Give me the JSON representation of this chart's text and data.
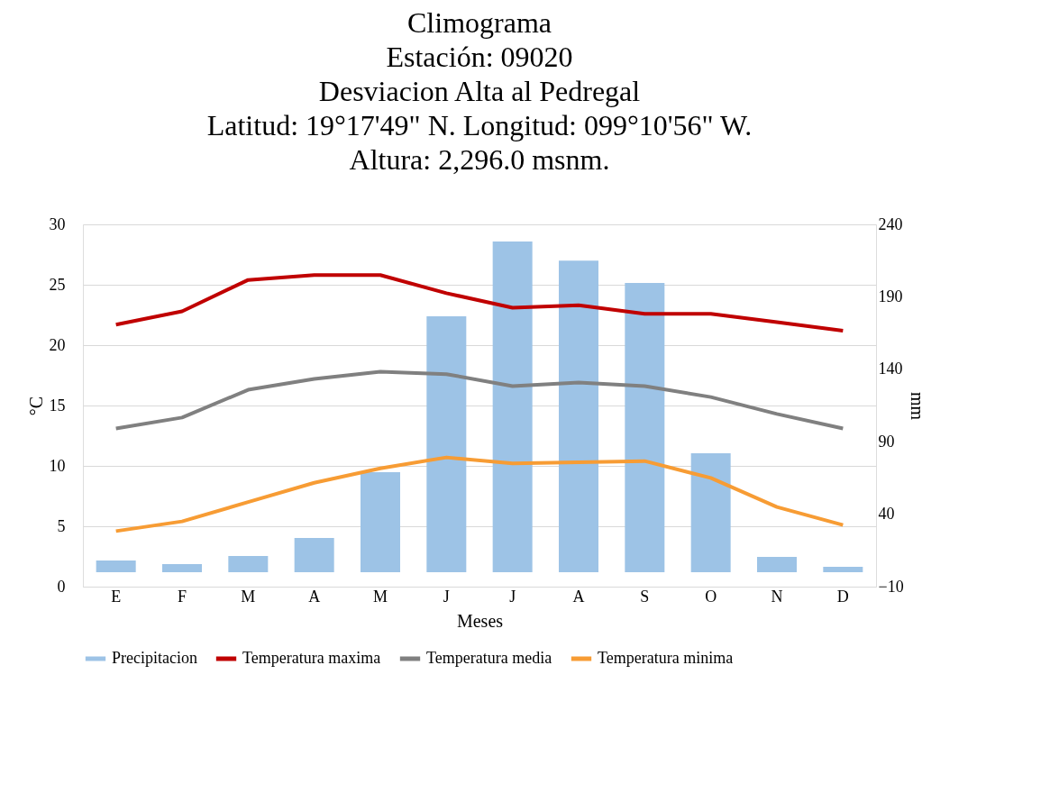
{
  "chart_data": {
    "type": "bar",
    "title": "Climograma",
    "subtitle": [
      "Estación: 09020",
      "Desviacion Alta al Pedregal",
      "Latitud: 19°17'49\" N.    Longitud: 099°10'56\" W.",
      "Altura: 2,296.0 msnm."
    ],
    "xlabel": "Meses",
    "ylabel": "°C",
    "y2label": "mm",
    "categories": [
      "E",
      "F",
      "M",
      "A",
      "M",
      "J",
      "J",
      "A",
      "S",
      "O",
      "N",
      "D"
    ],
    "series": [
      {
        "name": "Precipitacion",
        "axis": "y2",
        "color": "#9dc3e6",
        "values": [
          8.0,
          5.5,
          11.1,
          23.6,
          69,
          176.6,
          228.2,
          215,
          199.6,
          82,
          10.5,
          3.7
        ]
      },
      {
        "name": "Temperatura maxima",
        "type": "line",
        "color": "#c00000",
        "values": [
          21.7,
          22.8,
          25.4,
          25.8,
          25.8,
          24.3,
          23.1,
          23.3,
          22.6,
          22.6,
          21.9,
          21.2
        ]
      },
      {
        "name": "Temperatura media",
        "type": "line",
        "color": "#808080",
        "values": [
          13.1,
          14.0,
          16.3,
          17.2,
          17.8,
          17.6,
          16.6,
          16.9,
          16.6,
          15.7,
          14.3,
          13.1
        ]
      },
      {
        "name": "Temperatura minima",
        "type": "line",
        "color": "#f79c34",
        "values": [
          4.6,
          5.4,
          7.0,
          8.6,
          9.8,
          10.7,
          10.2,
          10.3,
          10.4,
          9.0,
          6.6,
          5.1
        ]
      }
    ],
    "ylim": [
      0,
      30
    ],
    "yticks": [
      0,
      5,
      10,
      15,
      20,
      25,
      30
    ],
    "y2lim": [
      -10,
      240
    ],
    "y2ticks": [
      -10,
      40,
      90,
      140,
      190,
      240
    ],
    "grid": "y",
    "legend": "bottom",
    "marker": "none",
    "line_style": "solid"
  }
}
